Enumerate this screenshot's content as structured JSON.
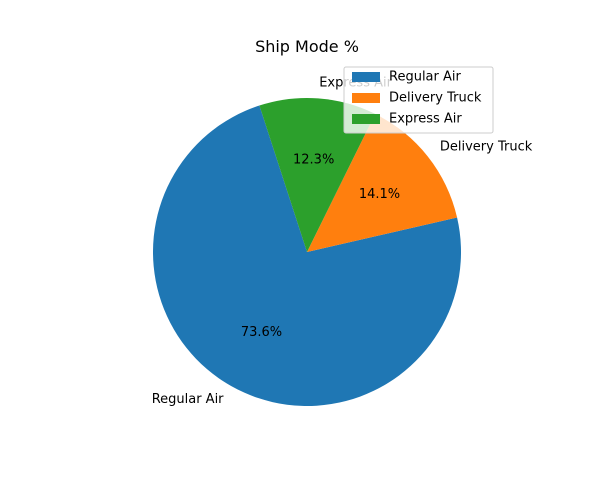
{
  "chart_data": {
    "type": "pie",
    "title": "Ship Mode %",
    "categories": [
      "Regular Air",
      "Delivery Truck",
      "Express Air"
    ],
    "values": [
      73.6,
      14.1,
      12.3
    ],
    "value_labels": [
      "73.6%",
      "14.1%",
      "12.3%"
    ],
    "colors": [
      "#1f77b4",
      "#ff7f0e",
      "#2ca02c"
    ],
    "legend": {
      "placement": "top-right",
      "entries": [
        "Regular Air",
        "Delivery Truck",
        "Express Air"
      ]
    }
  }
}
